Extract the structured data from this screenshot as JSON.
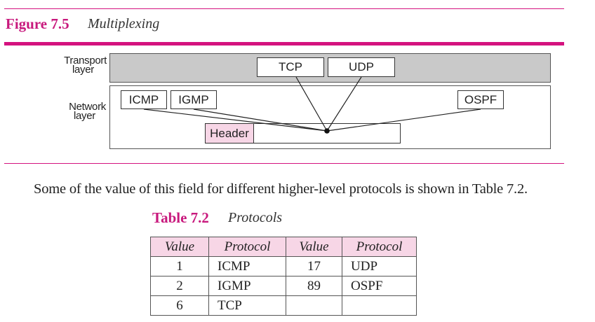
{
  "figure": {
    "number": "Figure 7.5",
    "title": "Multiplexing"
  },
  "diagram": {
    "transport_label": [
      "Transport",
      "layer"
    ],
    "network_label": [
      "Network",
      "layer"
    ],
    "transport_protocols": [
      "TCP",
      "UDP"
    ],
    "network_protocols": [
      "ICMP",
      "IGMP",
      "OSPF"
    ],
    "header_label": "Header",
    "colors": {
      "accent": "#d4127f",
      "transport_band": "#c9c9c9",
      "header_fill": "#f7d6e6"
    }
  },
  "paragraph": "Some of the value of this field for different higher-level protocols is shown in Table 7.2.",
  "table": {
    "number": "Table 7.2",
    "title": "Protocols",
    "headers": [
      "Value",
      "Protocol",
      "Value",
      "Protocol"
    ],
    "rows": [
      [
        "1",
        "ICMP",
        "17",
        "UDP"
      ],
      [
        "2",
        "IGMP",
        "89",
        "OSPF"
      ],
      [
        "6",
        "TCP",
        "",
        ""
      ]
    ]
  }
}
